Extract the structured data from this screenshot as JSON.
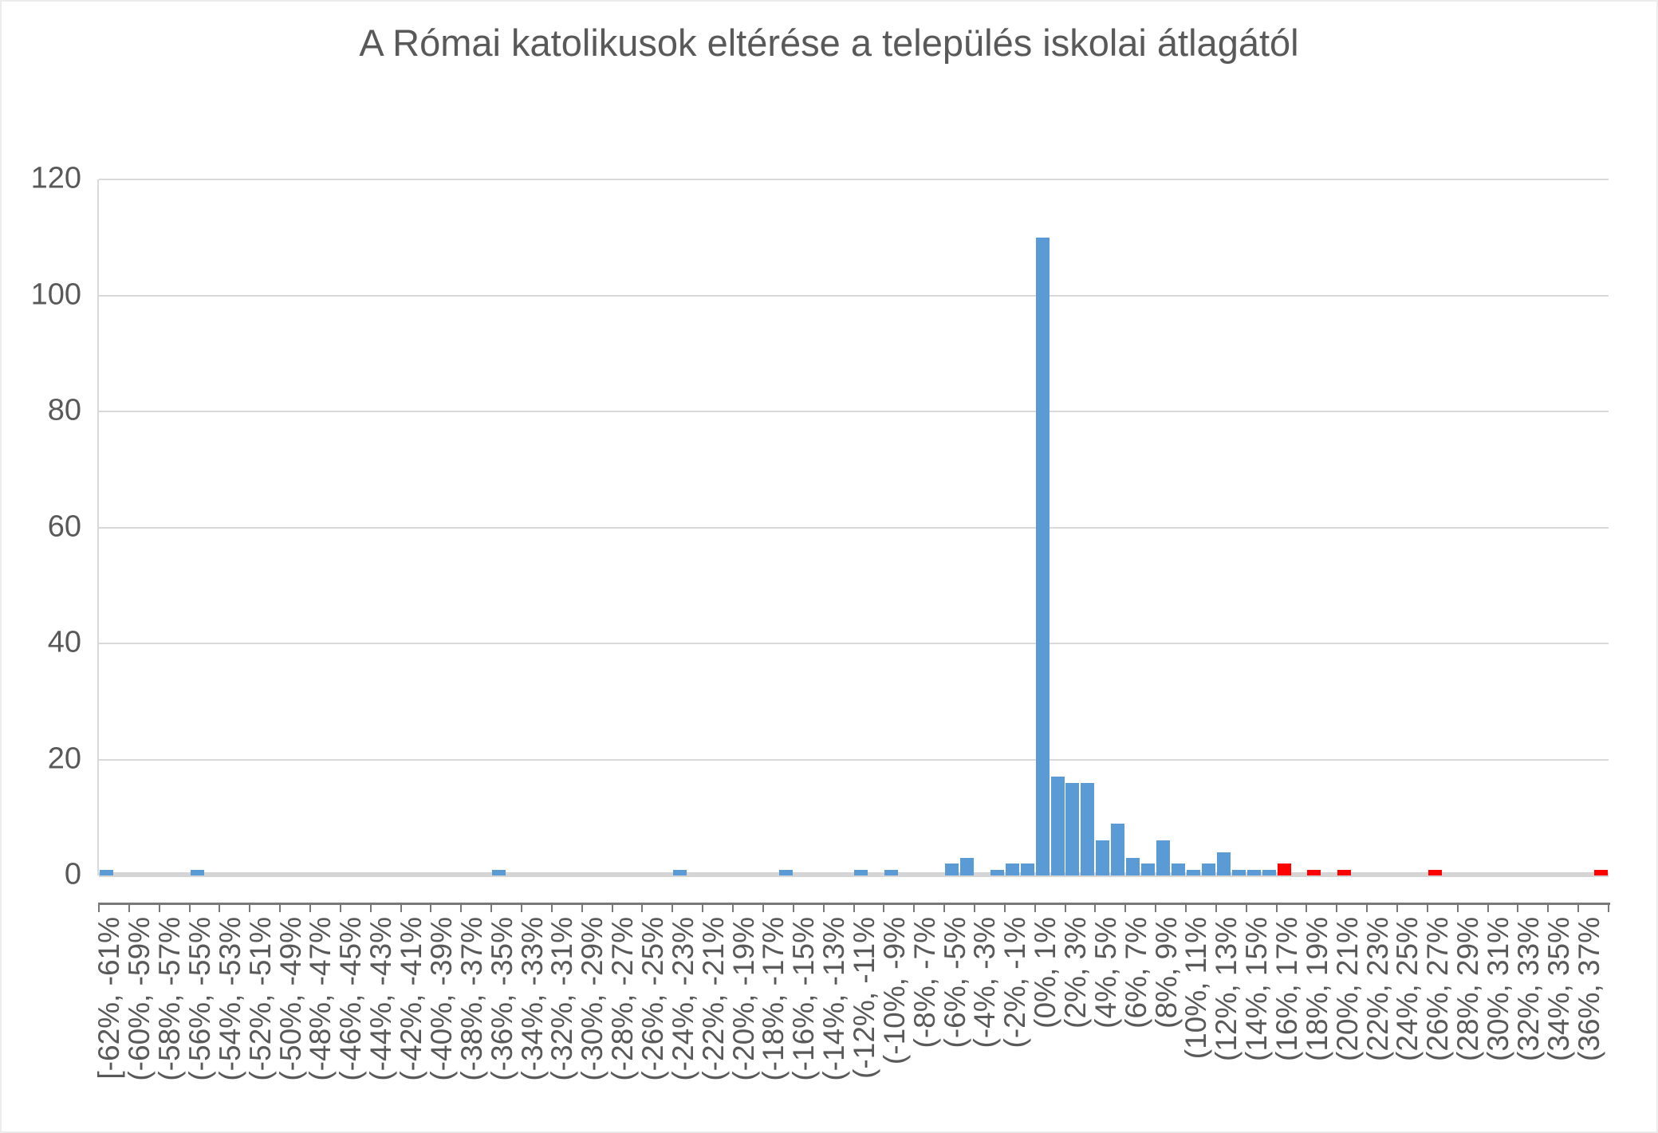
{
  "chart_data": {
    "type": "bar",
    "title": "A Római katolikusok eltérése a település iskolai átlagától",
    "xlabel": "",
    "ylabel": "",
    "ylim": [
      0,
      120
    ],
    "yticks": [
      0,
      20,
      40,
      60,
      80,
      100,
      120
    ],
    "grid": true,
    "legend": "none",
    "bins": {
      "count": 100,
      "start_percent": -62,
      "width_percent": 1
    },
    "x_label_interval": 2,
    "x_tick_labels": [
      "[-62%, -61%",
      "(-60%, -59%",
      "(-58%, -57%",
      "(-56%, -55%",
      "(-54%, -53%",
      "(-52%, -51%",
      "(-50%, -49%",
      "(-48%, -47%",
      "(-46%, -45%",
      "(-44%, -43%",
      "(-42%, -41%",
      "(-40%, -39%",
      "(-38%, -37%",
      "(-36%, -35%",
      "(-34%, -33%",
      "(-32%, -31%",
      "(-30%, -29%",
      "(-28%, -27%",
      "(-26%, -25%",
      "(-24%, -23%",
      "(-22%, -21%",
      "(-20%, -19%",
      "(-18%, -17%",
      "(-16%, -15%",
      "(-14%, -13%",
      "(-12%, -11%",
      "(-10%, -9%",
      "(-8%, -7%",
      "(-6%, -5%",
      "(-4%, -3%",
      "(-2%, -1%",
      "(0%, 1%",
      "(2%, 3%",
      "(4%, 5%",
      "(6%, 7%",
      "(8%, 9%",
      "(10%, 11%",
      "(12%, 13%",
      "(14%, 15%",
      "(16%, 17%",
      "(18%, 19%",
      "(20%, 21%",
      "(22%, 23%",
      "(24%, 25%",
      "(26%, 27%",
      "(28%, 29%",
      "(30%, 31%",
      "(32%, 33%",
      "(34%, 35%",
      "(36%, 37%"
    ],
    "values": [
      1,
      0,
      0,
      0,
      0,
      0,
      1,
      0,
      0,
      0,
      0,
      0,
      0,
      0,
      0,
      0,
      0,
      0,
      0,
      0,
      0,
      0,
      0,
      0,
      0,
      0,
      1,
      0,
      0,
      0,
      0,
      0,
      0,
      0,
      0,
      0,
      0,
      0,
      1,
      0,
      0,
      0,
      0,
      0,
      0,
      1,
      0,
      0,
      0,
      0,
      1,
      0,
      1,
      0,
      0,
      0,
      2,
      3,
      0,
      1,
      2,
      2,
      110,
      17,
      16,
      16,
      6,
      9,
      3,
      2,
      6,
      2,
      1,
      2,
      4,
      1,
      1,
      1,
      2,
      0,
      1,
      0,
      1,
      0,
      0,
      0,
      0,
      0,
      1,
      0,
      0,
      0,
      0,
      0,
      0,
      0,
      0,
      0,
      0,
      1
    ],
    "highlight_bins": [
      78,
      80,
      82,
      88,
      99
    ],
    "colors": {
      "bar": "#5B9BD5",
      "highlight": "#FF0000",
      "text": "#595959",
      "gridline": "#D9D9D9",
      "baseline": "#D5D5D5",
      "category_axis": "#787878",
      "background": "#FFFFFF"
    }
  }
}
